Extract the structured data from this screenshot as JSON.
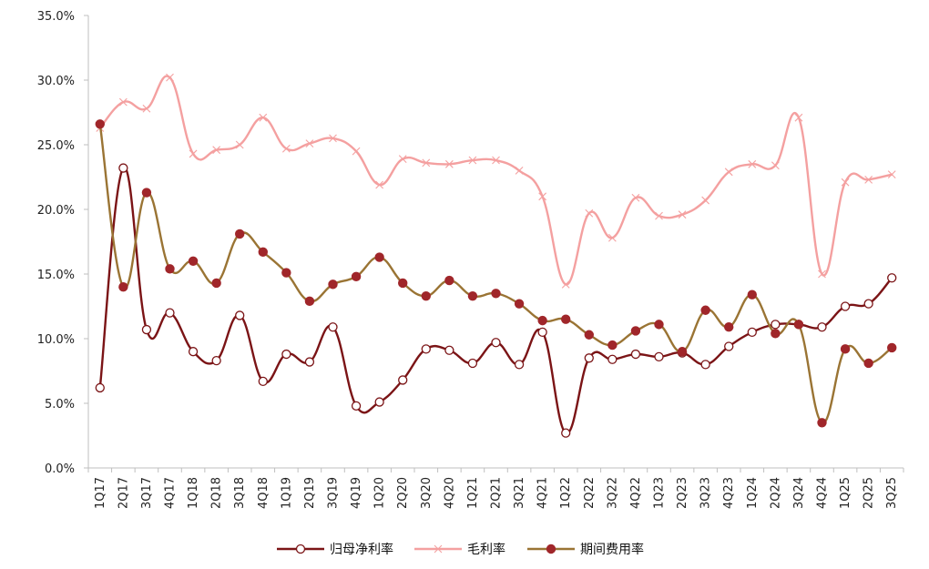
{
  "chart_data": {
    "type": "line",
    "title": "",
    "xlabel": "",
    "ylabel": "",
    "ylim": [
      0,
      35
    ],
    "yticks": [
      "0.0%",
      "5.0%",
      "10.0%",
      "15.0%",
      "20.0%",
      "25.0%",
      "30.0%",
      "35.0%"
    ],
    "ytick_values": [
      0,
      5,
      10,
      15,
      20,
      25,
      30,
      35
    ],
    "grid": false,
    "legend_position": "bottom",
    "smooth": true,
    "categories": [
      "1Q17",
      "2Q17",
      "3Q17",
      "4Q17",
      "1Q18",
      "2Q18",
      "3Q18",
      "4Q18",
      "1Q19",
      "2Q19",
      "3Q19",
      "4Q19",
      "1Q20",
      "2Q20",
      "3Q20",
      "4Q20",
      "1Q21",
      "2Q21",
      "3Q21",
      "4Q21",
      "1Q22",
      "2Q22",
      "3Q22",
      "4Q22",
      "1Q23",
      "2Q23",
      "3Q23",
      "4Q23",
      "1Q24",
      "2Q24",
      "3Q24",
      "4Q24",
      "1Q25",
      "2Q25",
      "3Q25"
    ],
    "series": [
      {
        "name": "归母净利率",
        "color": "#7b1416",
        "marker": "open-circle",
        "values": [
          6.2,
          23.2,
          10.7,
          12.0,
          9.0,
          8.3,
          11.8,
          6.7,
          8.8,
          8.2,
          10.9,
          4.8,
          5.1,
          6.8,
          9.2,
          9.1,
          8.1,
          9.7,
          8.0,
          10.5,
          2.7,
          8.5,
          8.4,
          8.8,
          8.6,
          8.9,
          8.0,
          9.4,
          10.5,
          11.1,
          11.1,
          10.9,
          12.5,
          12.7,
          14.7
        ]
      },
      {
        "name": "毛利率",
        "color": "#f4a0a0",
        "marker": "cross",
        "values": [
          26.3,
          28.3,
          27.8,
          30.2,
          24.3,
          24.6,
          25.0,
          27.1,
          24.7,
          25.1,
          25.5,
          24.5,
          21.9,
          23.9,
          23.6,
          23.5,
          23.8,
          23.8,
          23.0,
          21.0,
          14.2,
          19.7,
          17.8,
          20.9,
          19.5,
          19.6,
          20.7,
          22.9,
          23.5,
          23.4,
          27.1,
          15.0,
          22.1,
          22.3,
          22.7
        ]
      },
      {
        "name": "期间费用率",
        "color": "#9a7434",
        "marker": "filled-circle",
        "marker_fill": "#a0262a",
        "values": [
          26.6,
          14.0,
          21.3,
          15.4,
          16.0,
          14.3,
          18.1,
          16.7,
          15.1,
          12.9,
          14.2,
          14.8,
          16.3,
          14.3,
          13.3,
          14.5,
          13.3,
          13.5,
          12.7,
          11.4,
          11.5,
          10.3,
          9.5,
          10.6,
          11.1,
          9.0,
          12.2,
          10.9,
          13.4,
          10.4,
          11.1,
          3.5,
          9.2,
          8.1,
          9.3
        ]
      }
    ]
  },
  "axis": {
    "line_color": "#bfbfbf"
  }
}
